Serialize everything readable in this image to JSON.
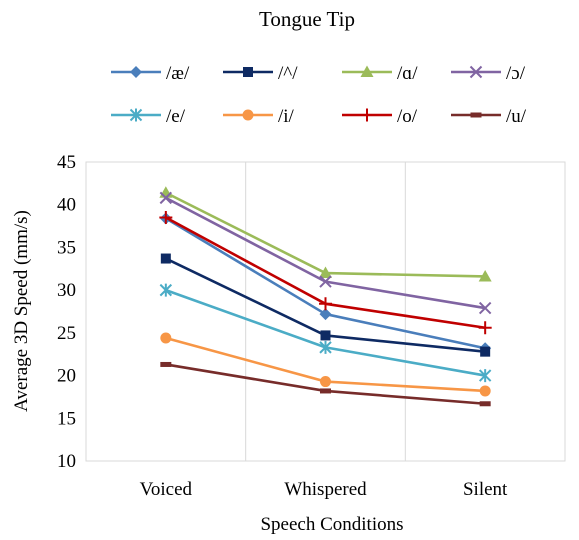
{
  "chart_data": {
    "type": "line",
    "title": "Tongue Tip",
    "xlabel": "Speech Conditions",
    "ylabel": "Average 3D Speed (mm/s)",
    "categories": [
      "Voiced",
      "Whispered",
      "Silent"
    ],
    "ylim": [
      10,
      45
    ],
    "yticks": [
      10,
      15,
      20,
      25,
      30,
      35,
      40,
      45
    ],
    "grid": "vertical",
    "legend_position": "top",
    "series": [
      {
        "name": "/æ/",
        "color": "#4a7ebb",
        "marker": "diamond",
        "values": [
          38.4,
          27.2,
          23.2
        ]
      },
      {
        "name": "/^/",
        "color": "#0e2a63",
        "marker": "square",
        "values": [
          33.7,
          24.7,
          22.8
        ]
      },
      {
        "name": "/ɑ/",
        "color": "#9bbb59",
        "marker": "triangle",
        "values": [
          41.4,
          32.0,
          31.6
        ]
      },
      {
        "name": "/ɔ/",
        "color": "#8064a2",
        "marker": "x",
        "values": [
          40.8,
          31.0,
          27.9
        ]
      },
      {
        "name": "/e/",
        "color": "#4bacc6",
        "marker": "star",
        "values": [
          30.0,
          23.3,
          20.0
        ]
      },
      {
        "name": "/i/",
        "color": "#f79646",
        "marker": "circle",
        "values": [
          24.4,
          19.3,
          18.2
        ]
      },
      {
        "name": "/o/",
        "color": "#c00000",
        "marker": "plus",
        "values": [
          38.5,
          28.4,
          25.6
        ]
      },
      {
        "name": "/u/",
        "color": "#772c2a",
        "marker": "dash",
        "values": [
          21.3,
          18.2,
          16.7
        ]
      }
    ]
  }
}
